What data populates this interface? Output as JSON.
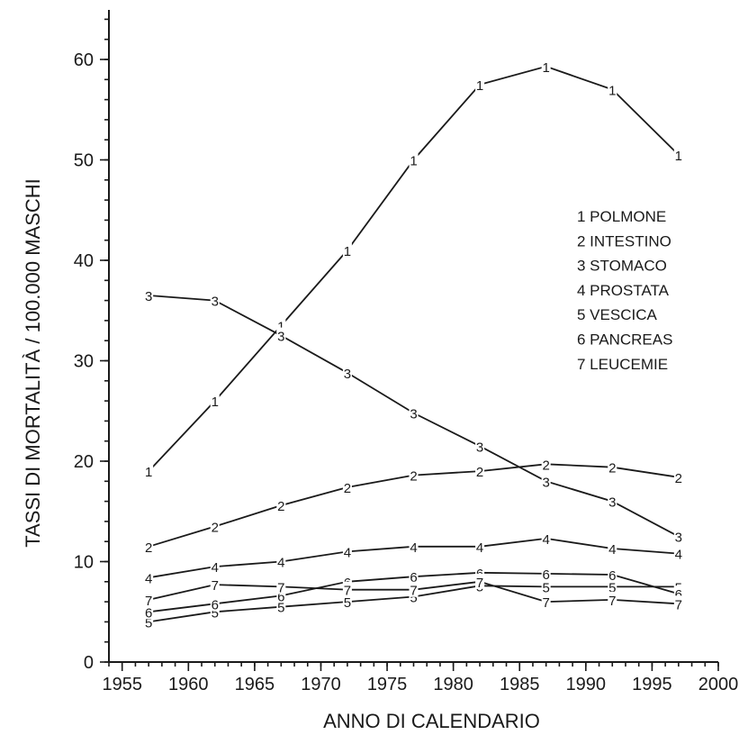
{
  "chart_data": {
    "type": "line",
    "title": "",
    "xlabel": "ANNO DI CALENDARIO",
    "ylabel": "TASSI DI MORTALITÀ / 100.000 MASCHI",
    "xlim": [
      1954,
      2000
    ],
    "ylim": [
      0,
      65
    ],
    "x_ticks": [
      1955,
      1960,
      1965,
      1970,
      1975,
      1980,
      1985,
      1990,
      1995,
      2000
    ],
    "x_minor_step": 1,
    "y_ticks": [
      0,
      10,
      20,
      30,
      40,
      50,
      60
    ],
    "y_minor_step": 2,
    "grid": false,
    "legend_position": "right",
    "x": [
      1957,
      1962,
      1967,
      1972,
      1977,
      1982,
      1987,
      1992,
      1997
    ],
    "series": [
      {
        "marker": "1",
        "name": "1 POLMONE",
        "values": [
          19,
          26,
          33.5,
          41,
          50,
          57.5,
          59.3,
          57,
          50.5
        ]
      },
      {
        "marker": "2",
        "name": "2 INTESTINO",
        "values": [
          11.5,
          13.5,
          15.6,
          17.4,
          18.6,
          19,
          19.7,
          19.4,
          18.4
        ]
      },
      {
        "marker": "3",
        "name": "3 STOMACO",
        "values": [
          36.5,
          36,
          32.5,
          28.8,
          24.8,
          21.5,
          18,
          16,
          12.5
        ]
      },
      {
        "marker": "4",
        "name": "4 PROSTATA",
        "values": [
          8.4,
          9.5,
          10,
          11,
          11.5,
          11.5,
          12.3,
          11.3,
          10.8
        ]
      },
      {
        "marker": "5",
        "name": "5 VESCICA",
        "values": [
          4,
          5,
          5.5,
          6,
          6.5,
          7.6,
          7.5,
          7.5,
          7.5
        ]
      },
      {
        "marker": "6",
        "name": "6 PANCREAS",
        "values": [
          5,
          5.8,
          6.6,
          8,
          8.5,
          8.9,
          8.8,
          8.7,
          6.8
        ]
      },
      {
        "marker": "7",
        "name": "7 LEUCEMIE",
        "values": [
          6.2,
          7.7,
          7.5,
          7.2,
          7.2,
          8,
          6,
          6.2,
          5.8
        ]
      }
    ]
  }
}
